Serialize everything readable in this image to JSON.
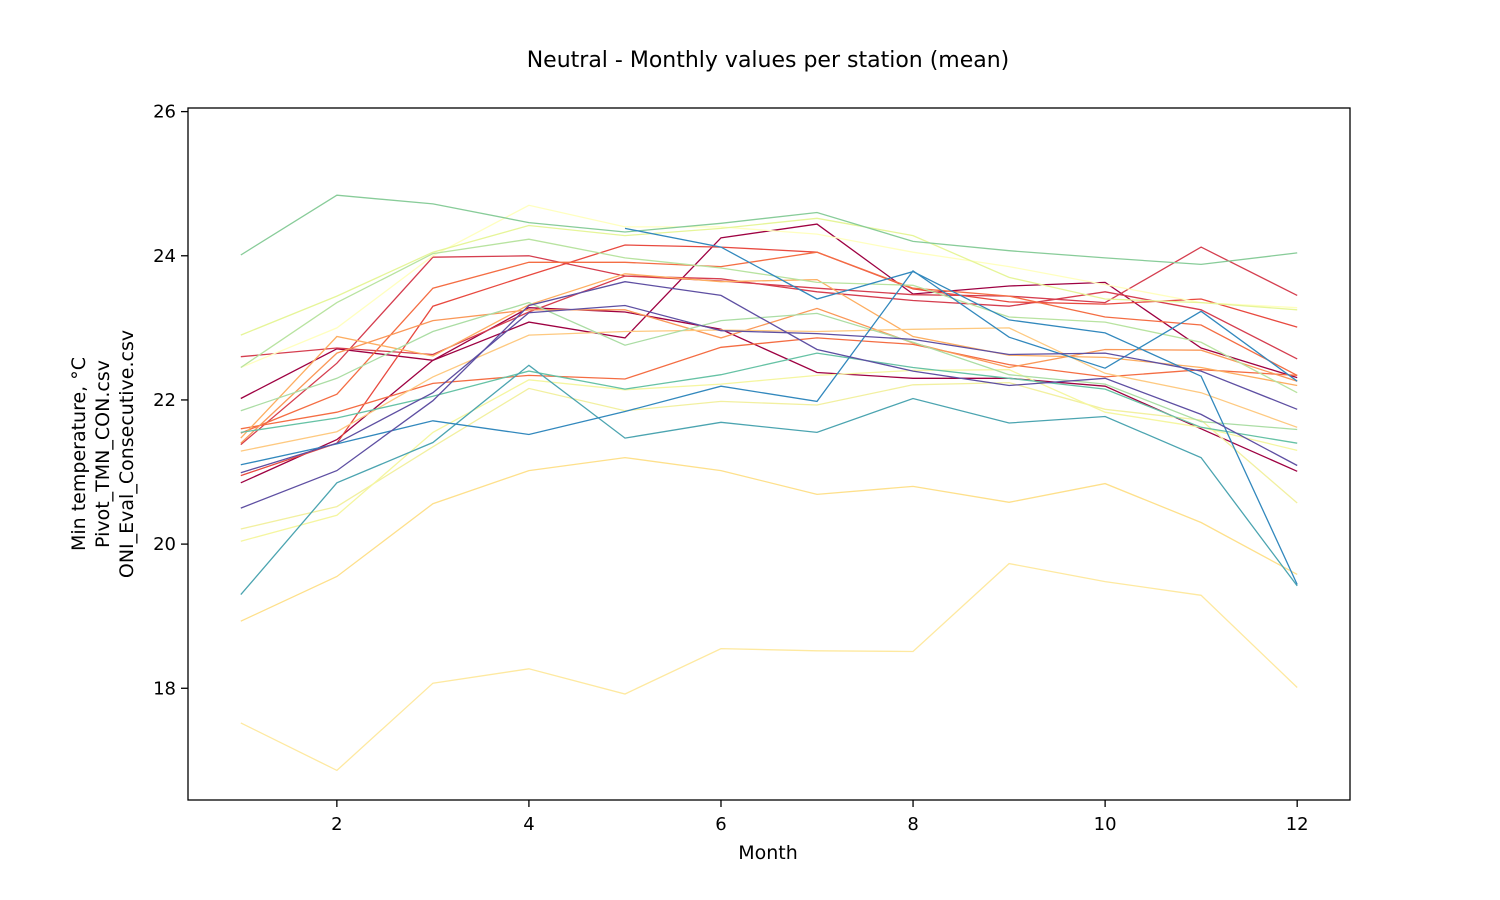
{
  "chart_data": {
    "type": "line",
    "title": "Neutral - Monthly values per station (mean)",
    "xlabel": "Month",
    "ylabel": [
      "Min temperature, °C",
      "Pivot_TMN_CON.csv",
      "ONI_Eval_Consecutive.csv"
    ],
    "xlim": [
      0.45,
      12.55
    ],
    "ylim": [
      16.45,
      26.05
    ],
    "xticks": [
      2,
      4,
      6,
      8,
      10,
      12
    ],
    "yticks": [
      18,
      20,
      22,
      24,
      26
    ],
    "grid": false,
    "legend": false,
    "x": [
      1,
      2,
      3,
      4,
      5,
      6,
      7,
      8,
      9,
      10,
      11,
      12
    ],
    "series": [
      {
        "color": "#9e0142",
        "values": [
          22.02,
          22.71,
          22.55,
          23.08,
          22.86,
          24.25,
          24.44,
          23.47,
          23.58,
          23.63,
          22.72,
          22.31
        ]
      },
      {
        "color": "#9e0142",
        "values": [
          20.85,
          21.45,
          22.55,
          23.28,
          23.22,
          22.98,
          22.38,
          22.3,
          22.3,
          22.19,
          21.6,
          21.01
        ]
      },
      {
        "color": "#d53e4f",
        "values": [
          22.6,
          22.72,
          22.63,
          23.22,
          23.72,
          23.65,
          23.55,
          23.46,
          23.44,
          23.35,
          24.12,
          23.45
        ]
      },
      {
        "color": "#d53e4f",
        "values": [
          21.38,
          22.51,
          23.98,
          24.0,
          23.72,
          23.68,
          23.5,
          23.38,
          23.3,
          23.5,
          23.25,
          22.57
        ]
      },
      {
        "color": "#e8493f",
        "values": [
          20.95,
          21.4,
          23.3,
          23.73,
          24.15,
          24.12,
          24.05,
          23.54,
          23.36,
          23.33,
          23.4,
          23.01
        ]
      },
      {
        "color": "#f46d43",
        "values": [
          21.6,
          21.83,
          22.23,
          22.34,
          22.29,
          22.73,
          22.86,
          22.77,
          22.49,
          22.32,
          22.42,
          22.34
        ]
      },
      {
        "color": "#f46d43",
        "values": [
          21.54,
          22.08,
          23.55,
          23.91,
          23.91,
          23.85,
          24.05,
          23.55,
          23.44,
          23.15,
          23.04,
          22.34
        ]
      },
      {
        "color": "#fa9858",
        "values": [
          21.4,
          22.65,
          23.1,
          23.25,
          23.25,
          22.86,
          23.27,
          22.79,
          22.45,
          22.7,
          22.69,
          22.26
        ]
      },
      {
        "color": "#fdae61",
        "values": [
          21.47,
          22.88,
          22.61,
          23.32,
          23.75,
          23.64,
          23.67,
          22.88,
          22.62,
          22.59,
          22.45,
          22.2
        ]
      },
      {
        "color": "#fec980",
        "values": [
          21.29,
          21.56,
          22.32,
          22.9,
          22.95,
          22.97,
          22.95,
          22.98,
          23.0,
          22.37,
          22.1,
          21.62
        ]
      },
      {
        "color": "#fee08b",
        "values": [
          18.93,
          19.55,
          20.56,
          21.02,
          21.2,
          21.02,
          20.69,
          20.8,
          20.58,
          20.84,
          20.3,
          19.58
        ]
      },
      {
        "color": "#fee9a0",
        "values": [
          17.52,
          16.86,
          18.07,
          18.27,
          17.92,
          18.55,
          18.52,
          18.51,
          19.73,
          19.48,
          19.29,
          18.01
        ]
      },
      {
        "color": "#f2f0a0",
        "values": [
          20.21,
          20.52,
          21.35,
          22.16,
          21.85,
          21.98,
          21.93,
          22.21,
          22.24,
          21.87,
          21.72,
          20.57
        ]
      },
      {
        "color": "#f5f6a0",
        "values": [
          20.04,
          20.4,
          21.55,
          22.28,
          22.14,
          22.22,
          22.34,
          22.41,
          22.42,
          21.83,
          21.62,
          21.3
        ]
      },
      {
        "color": "#ffffbf",
        "values": [
          22.45,
          23.0,
          24.0,
          24.7,
          24.4,
          24.4,
          24.3,
          24.05,
          23.85,
          23.6,
          23.35,
          23.28
        ]
      },
      {
        "color": "#e6f598",
        "values": [
          22.9,
          23.44,
          24.05,
          24.42,
          24.28,
          24.38,
          24.52,
          24.28,
          23.7,
          23.4,
          23.35,
          23.25
        ]
      },
      {
        "color": "#b8e3a0",
        "values": [
          22.45,
          23.35,
          24.03,
          24.23,
          23.97,
          23.83,
          23.63,
          23.59,
          23.15,
          23.08,
          22.8,
          22.1
        ]
      },
      {
        "color": "#abdda4",
        "values": [
          21.85,
          22.3,
          22.95,
          23.35,
          22.76,
          23.1,
          23.2,
          22.8,
          22.35,
          22.22,
          21.7,
          21.59
        ]
      },
      {
        "color": "#88cc99",
        "values": [
          24.01,
          24.84,
          24.72,
          24.46,
          24.33,
          24.45,
          24.6,
          24.2,
          24.07,
          23.97,
          23.88,
          24.04
        ]
      },
      {
        "color": "#66c2a5",
        "values": [
          21.55,
          21.75,
          22.05,
          22.4,
          22.15,
          22.35,
          22.65,
          22.45,
          22.3,
          22.15,
          21.62,
          21.4
        ]
      },
      {
        "color": "#4ba4b0",
        "values": [
          19.3,
          20.85,
          21.41,
          22.48,
          21.47,
          21.69,
          21.55,
          22.02,
          21.68,
          21.77,
          21.2,
          19.42
        ]
      },
      {
        "color": "#3288bd",
        "values": [
          21.1,
          21.39,
          21.71,
          21.52,
          21.84,
          22.19,
          21.98,
          23.79,
          22.87,
          22.44,
          23.23,
          22.26
        ]
      },
      {
        "color": "#3288bd",
        "values": [
          null,
          null,
          null,
          null,
          24.38,
          24.12,
          23.4,
          23.78,
          23.11,
          22.93,
          22.33,
          19.44
        ]
      },
      {
        "color": "#5e4fa2",
        "values": [
          20.99,
          21.4,
          22.1,
          23.21,
          23.31,
          22.96,
          22.92,
          22.84,
          22.63,
          22.65,
          22.4,
          21.87
        ]
      },
      {
        "color": "#5e4fa2",
        "values": [
          20.5,
          21.02,
          21.99,
          23.31,
          23.64,
          23.45,
          22.7,
          22.4,
          22.2,
          22.3,
          21.8,
          21.09
        ]
      }
    ]
  }
}
